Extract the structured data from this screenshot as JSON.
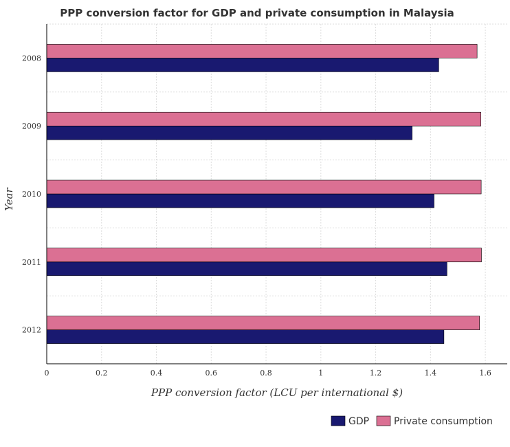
{
  "chart_data": {
    "type": "bar",
    "orientation": "horizontal",
    "title": "PPP conversion factor for GDP and private consumption in Malaysia",
    "xlabel": "PPP conversion factor (LCU per international $)",
    "ylabel": "Year",
    "categories": [
      "2008",
      "2009",
      "2010",
      "2011",
      "2012"
    ],
    "xlim": [
      0,
      1.68
    ],
    "xticks": [
      "0",
      "0.2",
      "0.4",
      "0.6",
      "0.8",
      "1",
      "1.2",
      "1.4",
      "1.6"
    ],
    "grid": true,
    "legend_position": "bottom-right",
    "series": [
      {
        "name": "GDP",
        "color": "#191970",
        "values": [
          1.43,
          1.333,
          1.413,
          1.46,
          1.449
        ]
      },
      {
        "name": " Private consumption",
        "color": "#db7093",
        "values": [
          1.57,
          1.584,
          1.585,
          1.586,
          1.579
        ]
      }
    ]
  }
}
